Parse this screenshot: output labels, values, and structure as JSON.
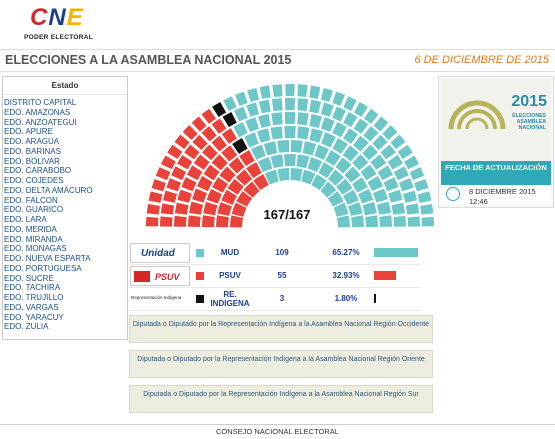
{
  "header": {
    "logo_text": [
      "C",
      "N",
      "E"
    ],
    "logo_caption": "PODER ELECTORAL",
    "title": "ELECCIONES A LA ASAMBLEA NACIONAL 2015",
    "date": "6 DE DICIEMBRE DE 2015"
  },
  "states": {
    "heading": "Estado",
    "items": [
      "DISTRITO CAPITAL",
      "EDO. AMAZONAS",
      "EDO. ANZOATEGUI",
      "EDO. APURE",
      "EDO. ARAGUA",
      "EDO. BARINAS",
      "EDO. BOLIVAR",
      "EDO. CARABOBO",
      "EDO. COJEDES",
      "EDO. DELTA AMACURO",
      "EDO. FALCON",
      "EDO. GUARICO",
      "EDO. LARA",
      "EDO. MERIDA",
      "EDO. MIRANDA",
      "EDO. MONAGAS",
      "EDO. NUEVA ESPARTA",
      "EDO. PORTUGUESA",
      "EDO. SUCRE",
      "EDO. TACHIRA",
      "EDO. TRUJILLO",
      "EDO. VARGAS",
      "EDO. YARACUY",
      "EDO. ZULIA"
    ]
  },
  "parliament": {
    "total": "167/167",
    "seats": {
      "psuv": 55,
      "indigena": 3,
      "mud": 109
    },
    "colors": {
      "mud": "#6dc7c9",
      "psuv": "#e8423a",
      "indigena": "#111111"
    }
  },
  "side": {
    "year": "2015",
    "sub": "ELECCIONES ASAMBLEA NACIONAL",
    "tag": "FECHA DE ACTUALIZACIÓN",
    "date": "8 DICIEMBRE 2015",
    "time": "12:46"
  },
  "parties": [
    {
      "logo": "Unidad",
      "name": "MUD",
      "seats": "109",
      "pct": "65.27%",
      "share": 0.6527,
      "color": "#6dc7c9"
    },
    {
      "logo": "PSUV",
      "name": "PSUV",
      "seats": "55",
      "pct": "32.93%",
      "share": 0.3293,
      "color": "#e8423a"
    },
    {
      "logo": "Representación Indígena",
      "name": "RE. INDIGENA",
      "seats": "3",
      "pct": "1.80%",
      "share": 0.018,
      "color": "#111111"
    }
  ],
  "regions": [
    "Diputada o Diputado por la Representación Indígena a la Asamblea Nacional Región Occidente",
    "Diputada o Diputado por la Representación Indígena a la Asamblea Nacional Región Oriente",
    "Diputada o Diputado por la Representación Indígena a la Asamblea Nacional Región Sur"
  ],
  "footer": "CONSEJO NACIONAL ELECTORAL"
}
